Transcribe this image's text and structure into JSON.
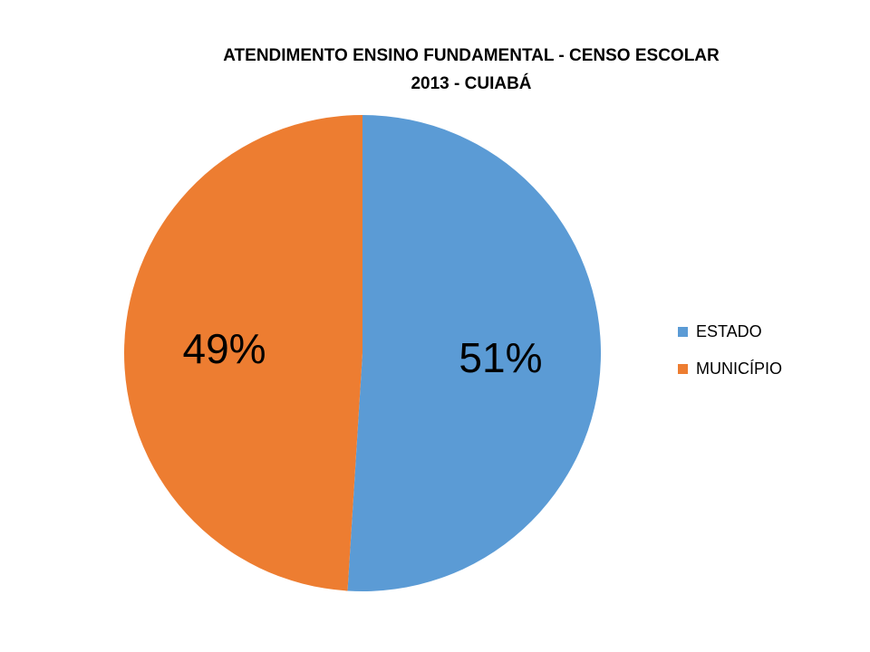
{
  "chart_data": {
    "type": "pie",
    "title_lines": [
      "ATENDIMENTO ENSINO FUNDAMENTAL -  CENSO ESCOLAR",
      "2013 - CUIABÁ"
    ],
    "slices": [
      {
        "name": "ESTADO",
        "value": 51,
        "label": "51%",
        "color": "#5B9BD5"
      },
      {
        "name": "MUNICÍPIO",
        "value": 49,
        "label": "49%",
        "color": "#ED7D31"
      }
    ],
    "legend_position": "right"
  }
}
